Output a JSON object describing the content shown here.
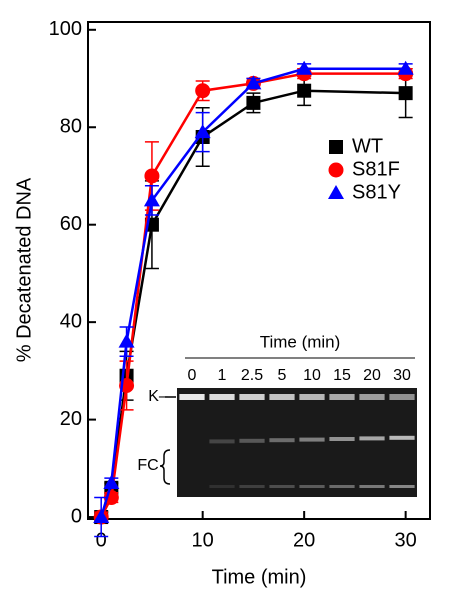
{
  "chart_data": {
    "type": "line",
    "xlabel": "Time (min)",
    "ylabel": "% Decatenated DNA",
    "x": [
      0,
      1,
      2.5,
      5,
      10,
      15,
      20,
      30
    ],
    "series": [
      {
        "name": "WT",
        "color": "#000000",
        "marker": "square",
        "values": [
          0,
          6,
          29,
          60,
          78,
          85,
          87.5,
          87
        ],
        "errors": [
          1,
          1,
          5,
          9,
          6,
          2,
          3,
          5
        ]
      },
      {
        "name": "S81F",
        "color": "#ff0000",
        "marker": "circle",
        "values": [
          0,
          4,
          27,
          70,
          87.5,
          89,
          91,
          91
        ],
        "errors": [
          1,
          1,
          5,
          7,
          2,
          1,
          1,
          1
        ]
      },
      {
        "name": "S81Y",
        "color": "#0000ff",
        "marker": "triangle",
        "values": [
          0,
          7,
          36,
          65,
          79,
          89,
          92,
          92
        ],
        "errors": [
          4,
          1,
          3,
          3,
          4,
          1,
          1,
          1
        ]
      }
    ],
    "xlim": [
      -1.3,
      32.4
    ],
    "ylim": [
      -0.4,
      101.6
    ],
    "xticks": [
      0,
      10,
      20,
      30
    ],
    "yticks": [
      0,
      20,
      40,
      60,
      80,
      100
    ],
    "legend": "right",
    "inset": {
      "title": "Time (min)",
      "lanes": [
        "0",
        "1",
        "2.5",
        "5",
        "10",
        "15",
        "20",
        "30"
      ],
      "labels": [
        "K–",
        "FC"
      ]
    }
  }
}
